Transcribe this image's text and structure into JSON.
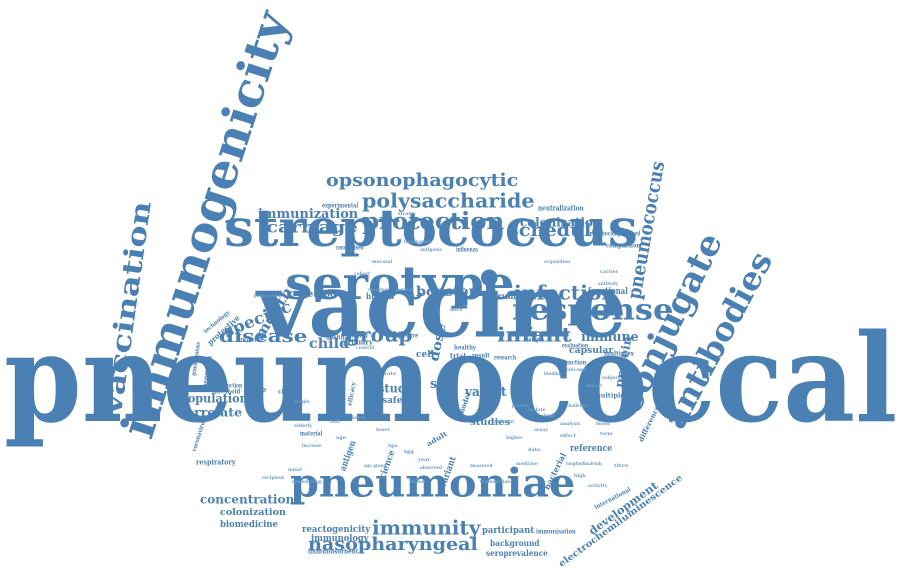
{
  "color": "#4a80b3",
  "words": {
    "pneumococcal": "pneumococcal",
    "vaccine": "vaccine",
    "streptococcus": "streptococcus",
    "serotype": "serotype",
    "immunogenicity": "immunogenicity",
    "conjugate": "conjugate",
    "antibodies": "antibodies",
    "vaccination": "vaccination",
    "pneumoniae": "pneumoniae",
    "response": "response",
    "protection": "protection",
    "polysaccharide": "polysaccharide",
    "opsonophagocytic": "opsonophagocytic",
    "pneumococcus": "pneumococcus",
    "infection": "infection",
    "schedule": "schedule",
    "infant": "infant",
    "immunity": "immunity",
    "nasopharyngeal": "nasopharyngeal",
    "disease": "disease",
    "group": "group",
    "carriage": "carriage",
    "immunization": "immunization",
    "colonisation": "colonisation",
    "booster": "booster",
    "immune": "immune",
    "specific": "specific",
    "month": "month",
    "dose": "dose",
    "child": "child",
    "population": "population",
    "correlate": "correlate",
    "concentration": "concentration",
    "colonization": "colonization",
    "biomedicine": "biomedicine",
    "reactogenicity": "reactogenicity",
    "immunology": "immunology",
    "participant": "participant",
    "background": "background",
    "seroprevalence": "seroprevalence",
    "development": "development",
    "electrochemiluminescence": "electrochemiluminescence",
    "protein": "protein",
    "capsular": "capsular",
    "functional": "functional",
    "valent": "valent",
    "studies": "studies",
    "study": "study",
    "safety": "safety",
    "reference": "reference",
    "method": "method",
    "human": "human",
    "serum": "serum",
    "cell": "cell",
    "primary": "primary",
    "invasive": "invasive",
    "protective": "protective",
    "pneumonia": "pneumonia",
    "threshold": "threshold",
    "standard": "standard",
    "respiratory": "respiratory",
    "clinical": "clinical",
    "trial": "trial",
    "result": "result",
    "neutralization": "neutralization",
    "experimental": "experimental",
    "comparison": "comparison",
    "immunocompromised": "immunocompromised",
    "multiple": "multiple",
    "difference": "difference",
    "science": "science",
    "model": "model",
    "bacterial": "bacterial",
    "adult": "adult",
    "variant": "variant",
    "sar": "sar",
    "health": "health",
    "natural": "natural",
    "exposure": "exposure",
    "randomised": "randomised",
    "technology": "technology",
    "granulomatous": "granulomatous",
    "introduction": "introduction",
    "immunosorbent": "immunosorbent",
    "immunisation": "immunisation",
    "international": "international",
    "function": "function",
    "evaluation": "evaluation",
    "healthy": "healthy",
    "sample": "sample",
    "antigen": "antigen",
    "coronavirus": "coronavirus",
    "multiplex": "multiplex",
    "research": "research",
    "material": "material",
    "efficacy": "efficacy",
    "influenza": "influenza",
    "mucosal": "mucosal",
    "strain": "strain",
    "control": "control",
    "higher": "higher",
    "patient": "patient",
    "receptor": "receptor",
    "rate": "rate",
    "level": "level",
    "test": "test",
    "age": "age",
    "year": "year",
    "data": "data",
    "type": "type",
    "assay": "assay",
    "analysis": "analysis",
    "effect": "effect",
    "blood": "blood",
    "term": "term",
    "risk": "risk",
    "high": "high",
    "activity": "activity",
    "titre": "titre",
    "iga": "iga",
    "igg": "igg",
    "acquisition": "acquisition",
    "antigenic": "antigenic",
    "phagocytosis": "phagocytosis",
    "immunogenic": "immunogenic",
    "longitudinal": "longitudinal",
    "challenge": "challenge",
    "recipient": "recipient",
    "nasal": "nasal",
    "mice": "mice",
    "single": "single",
    "lower": "lower",
    "age group": "age group",
    "increase": "increase",
    "observed": "observed",
    "measured": "measured",
    "epidemiology": "epidemiology",
    "transmission": "transmission",
    "follow": "follow",
    "medicine": "medicine",
    "adjuvant": "adjuvant",
    "elderly": "elderly",
    "cohort": "cohort",
    "subject": "subject",
    "impact": "impact",
    "carrier": "carrier",
    "antibody": "antibody",
    "outcome": "outcome",
    "binding": "binding",
    "isolate": "isolate",
    "period": "period"
  }
}
